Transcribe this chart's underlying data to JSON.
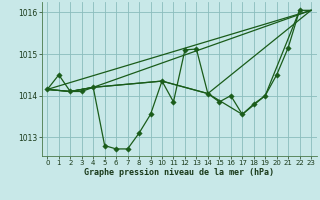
{
  "background_color": "#c8e8e8",
  "grid_color": "#8bbcbc",
  "line_color": "#1a5c1a",
  "xlabel": "Graphe pression niveau de la mer (hPa)",
  "xlim": [
    -0.5,
    23.5
  ],
  "ylim": [
    1012.55,
    1016.25
  ],
  "yticks": [
    1013,
    1014,
    1015,
    1016
  ],
  "xticks": [
    0,
    1,
    2,
    3,
    4,
    5,
    6,
    7,
    8,
    9,
    10,
    11,
    12,
    13,
    14,
    15,
    16,
    17,
    18,
    19,
    20,
    21,
    22,
    23
  ],
  "series": [
    {
      "x": [
        0,
        1,
        2,
        3,
        4,
        5,
        6,
        7,
        8,
        9,
        10,
        11,
        12,
        13,
        14,
        15,
        16,
        17,
        18,
        19,
        20,
        21,
        22
      ],
      "y": [
        1014.15,
        1014.5,
        1014.1,
        1014.1,
        1014.2,
        1012.8,
        1012.72,
        1012.72,
        1013.1,
        1013.55,
        1014.35,
        1013.85,
        1015.1,
        1015.12,
        1014.05,
        1013.85,
        1014.0,
        1013.55,
        1013.8,
        1014.0,
        1014.5,
        1015.15,
        1016.05
      ]
    },
    {
      "x": [
        0,
        23
      ],
      "y": [
        1014.15,
        1016.05
      ]
    },
    {
      "x": [
        0,
        2,
        4,
        23
      ],
      "y": [
        1014.15,
        1014.1,
        1014.2,
        1016.05
      ]
    },
    {
      "x": [
        0,
        2,
        4,
        10,
        14,
        23
      ],
      "y": [
        1014.15,
        1014.1,
        1014.2,
        1014.35,
        1014.05,
        1016.05
      ]
    },
    {
      "x": [
        0,
        2,
        4,
        10,
        14,
        17,
        19,
        22,
        23
      ],
      "y": [
        1014.15,
        1014.1,
        1014.2,
        1014.35,
        1014.05,
        1013.55,
        1014.0,
        1016.05,
        1016.05
      ]
    }
  ]
}
